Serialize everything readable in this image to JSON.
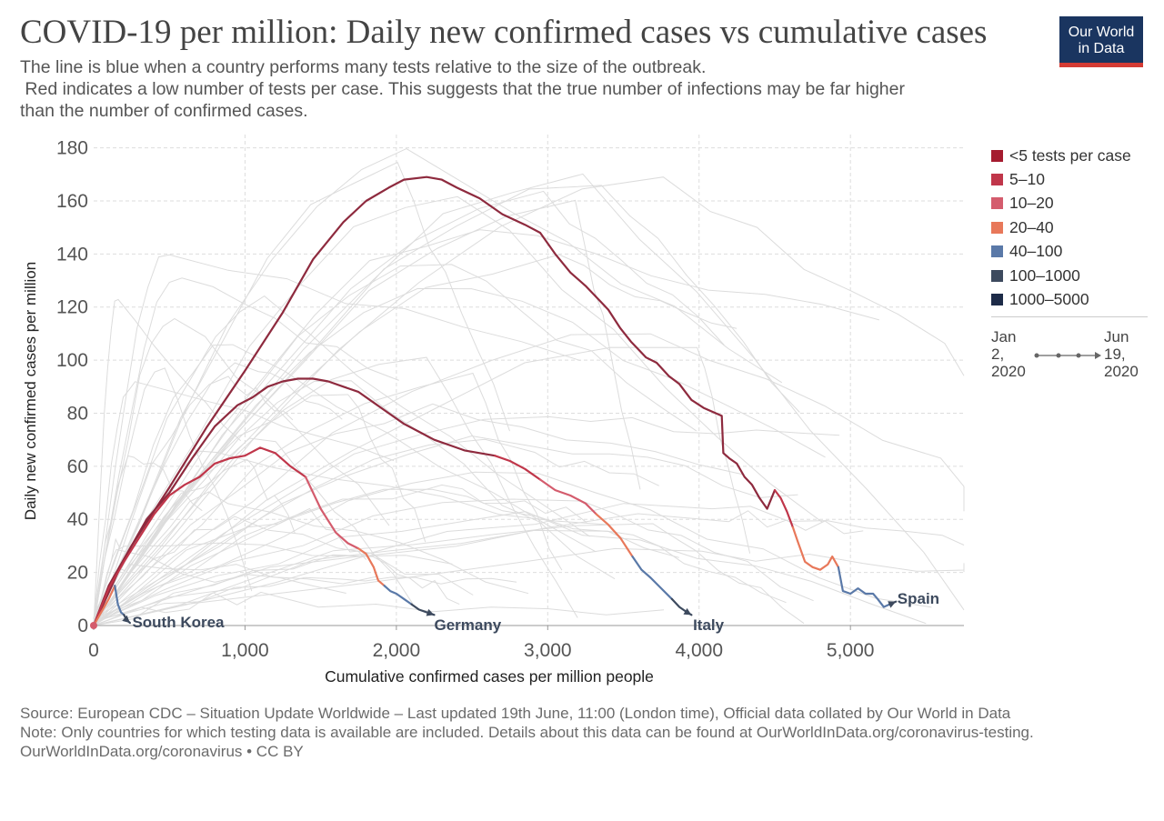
{
  "title": "COVID-19 per million: Daily new confirmed cases vs cumulative cases",
  "subtitle": {
    "line1": "The line is blue when a country performs many tests relative to the size of the outbreak.",
    "line2": " Red indicates a low number of tests per case. This suggests that the true number of infections may be far higher",
    "line3": "than the number of confirmed cases."
  },
  "logo": {
    "line1": "Our World",
    "line2": "in Data",
    "bg_color": "#1a3560",
    "accent_color": "#d43b34"
  },
  "legend": {
    "items": [
      {
        "label": "<5 tests per case",
        "color": "#a51c2f"
      },
      {
        "label": "5–10",
        "color": "#c0364a"
      },
      {
        "label": "10–20",
        "color": "#d45c6d"
      },
      {
        "label": "20–40",
        "color": "#e8785a"
      },
      {
        "label": "40–100",
        "color": "#5a79a8"
      },
      {
        "label": "100–1000",
        "color": "#3d4a5e"
      },
      {
        "label": "1000–5000",
        "color": "#1d2b48"
      }
    ],
    "timeline": {
      "start": {
        "l1": "Jan",
        "l2": "2,",
        "l3": "2020"
      },
      "end": {
        "l1": "Jun",
        "l2": "19,",
        "l3": "2020"
      }
    }
  },
  "footer": {
    "source": "Source: European CDC – Situation Update Worldwide – Last updated 19th June, 11:00 (London time), Official data collated by Our World in Data",
    "note": "Note: Only countries for which testing data is available are included. Details about this data can be found at OurWorldInData.org/coronavirus-testing.",
    "license": "OurWorldInData.org/coronavirus • CC BY"
  },
  "chart_data": {
    "type": "line",
    "title": "COVID-19 per million: Daily new confirmed cases vs cumulative cases",
    "xlabel": "Cumulative confirmed cases per million people",
    "ylabel": "Daily new confirmed cases per million",
    "xlim": [
      0,
      5750
    ],
    "ylim": [
      0,
      185
    ],
    "x_ticks": [
      0,
      1000,
      2000,
      3000,
      4000,
      5000
    ],
    "x_tick_labels": [
      "0",
      "1,000",
      "2,000",
      "3,000",
      "4,000",
      "5,000"
    ],
    "y_ticks": [
      0,
      20,
      40,
      60,
      80,
      100,
      120,
      140,
      160,
      180
    ],
    "y_tick_labels": [
      "0",
      "20",
      "40",
      "60",
      "80",
      "100",
      "120",
      "140",
      "160",
      "180"
    ],
    "grid": true,
    "legend_position": "right",
    "series": [
      {
        "name": "Spain",
        "label_color": "#3d4a5e",
        "segments": [
          {
            "color": "#8e2a3e",
            "points": [
              [
                0,
                0
              ],
              [
                100,
                15
              ],
              [
                250,
                30
              ],
              [
                500,
                52
              ],
              [
                750,
                75
              ],
              [
                1000,
                96
              ],
              [
                1250,
                118
              ],
              [
                1450,
                138
              ],
              [
                1650,
                152
              ],
              [
                1800,
                160
              ],
              [
                1950,
                165
              ],
              [
                2050,
                168
              ],
              [
                2200,
                169
              ],
              [
                2300,
                168
              ],
              [
                2400,
                165
              ],
              [
                2550,
                161
              ],
              [
                2700,
                155
              ],
              [
                2850,
                151
              ],
              [
                2950,
                148
              ],
              [
                3050,
                140
              ],
              [
                3150,
                133
              ],
              [
                3250,
                128
              ],
              [
                3350,
                122
              ],
              [
                3400,
                119
              ],
              [
                3480,
                112
              ],
              [
                3550,
                107
              ],
              [
                3650,
                101
              ],
              [
                3720,
                99
              ],
              [
                3800,
                94
              ],
              [
                3870,
                91
              ],
              [
                3950,
                85
              ],
              [
                4030,
                82
              ],
              [
                4150,
                79
              ],
              [
                4160,
                65
              ],
              [
                4200,
                63
              ],
              [
                4250,
                61
              ],
              [
                4300,
                56
              ],
              [
                4350,
                53
              ],
              [
                4400,
                48
              ],
              [
                4450,
                44
              ],
              [
                4500,
                51
              ]
            ]
          },
          {
            "color": "#c0364a",
            "points": [
              [
                4500,
                51
              ],
              [
                4540,
                48
              ],
              [
                4580,
                43
              ],
              [
                4620,
                37
              ]
            ]
          },
          {
            "color": "#e8785a",
            "points": [
              [
                4620,
                37
              ],
              [
                4650,
                32
              ],
              [
                4700,
                24
              ],
              [
                4750,
                22
              ],
              [
                4800,
                21
              ],
              [
                4850,
                23
              ],
              [
                4880,
                26
              ],
              [
                4920,
                22
              ]
            ]
          },
          {
            "color": "#5a79a8",
            "points": [
              [
                4920,
                22
              ],
              [
                4950,
                13
              ],
              [
                5000,
                12
              ],
              [
                5050,
                14
              ],
              [
                5100,
                12
              ],
              [
                5150,
                12
              ],
              [
                5180,
                10
              ],
              [
                5220,
                7
              ],
              [
                5260,
                8
              ]
            ]
          },
          {
            "color": "#3d4a5e",
            "points": [
              [
                5260,
                8
              ],
              [
                5300,
                9
              ]
            ]
          }
        ],
        "label_at": [
          5310,
          10
        ]
      },
      {
        "name": "Italy",
        "label_color": "#3d4a5e",
        "segments": [
          {
            "color": "#8e2a3e",
            "points": [
              [
                0,
                0
              ],
              [
                80,
                10
              ],
              [
                200,
                25
              ],
              [
                350,
                40
              ],
              [
                500,
                50
              ],
              [
                650,
                63
              ],
              [
                800,
                75
              ],
              [
                950,
                83
              ],
              [
                1050,
                86
              ],
              [
                1150,
                90
              ],
              [
                1250,
                92
              ],
              [
                1350,
                93
              ],
              [
                1450,
                93
              ],
              [
                1550,
                92
              ],
              [
                1650,
                90
              ],
              [
                1750,
                88
              ],
              [
                1850,
                84
              ],
              [
                1950,
                80
              ],
              [
                2050,
                76
              ],
              [
                2150,
                73
              ],
              [
                2250,
                70
              ],
              [
                2350,
                68
              ],
              [
                2450,
                66
              ],
              [
                2550,
                65
              ],
              [
                2650,
                64
              ]
            ]
          },
          {
            "color": "#c0364a",
            "points": [
              [
                2650,
                64
              ],
              [
                2750,
                62
              ],
              [
                2850,
                59
              ],
              [
                2950,
                55
              ]
            ]
          },
          {
            "color": "#d45c6d",
            "points": [
              [
                2950,
                55
              ],
              [
                3050,
                51
              ],
              [
                3150,
                49
              ],
              [
                3250,
                46
              ],
              [
                3320,
                42
              ]
            ]
          },
          {
            "color": "#e8785a",
            "points": [
              [
                3320,
                42
              ],
              [
                3400,
                38
              ],
              [
                3480,
                33
              ],
              [
                3560,
                26
              ]
            ]
          },
          {
            "color": "#5a79a8",
            "points": [
              [
                3560,
                26
              ],
              [
                3620,
                21
              ],
              [
                3680,
                18
              ],
              [
                3750,
                14
              ],
              [
                3820,
                10
              ]
            ]
          },
          {
            "color": "#3d4a5e",
            "points": [
              [
                3820,
                10
              ],
              [
                3870,
                7
              ],
              [
                3920,
                5
              ],
              [
                3950,
                4
              ]
            ]
          }
        ],
        "label_at": [
          3960,
          0
        ]
      },
      {
        "name": "Germany",
        "label_color": "#3d4a5e",
        "segments": [
          {
            "color": "#c0364a",
            "points": [
              [
                0,
                0
              ],
              [
                50,
                7
              ],
              [
                100,
                14
              ],
              [
                200,
                24
              ],
              [
                300,
                33
              ],
              [
                400,
                42
              ],
              [
                500,
                49
              ],
              [
                600,
                53
              ],
              [
                700,
                56
              ],
              [
                800,
                61
              ],
              [
                900,
                63
              ],
              [
                1000,
                64
              ],
              [
                1100,
                67
              ],
              [
                1200,
                65
              ],
              [
                1300,
                60
              ],
              [
                1400,
                56
              ]
            ]
          },
          {
            "color": "#d45c6d",
            "points": [
              [
                1400,
                56
              ],
              [
                1500,
                44
              ],
              [
                1600,
                35
              ],
              [
                1680,
                31
              ],
              [
                1750,
                29
              ]
            ]
          },
          {
            "color": "#e8785a",
            "points": [
              [
                1750,
                29
              ],
              [
                1800,
                27
              ],
              [
                1850,
                22
              ],
              [
                1880,
                17
              ],
              [
                1920,
                15
              ]
            ]
          },
          {
            "color": "#5a79a8",
            "points": [
              [
                1920,
                15
              ],
              [
                1960,
                13
              ],
              [
                2000,
                12
              ],
              [
                2050,
                10
              ],
              [
                2100,
                8
              ]
            ]
          },
          {
            "color": "#3d4a5e",
            "points": [
              [
                2100,
                8
              ],
              [
                2150,
                6
              ],
              [
                2200,
                5
              ],
              [
                2250,
                4
              ]
            ]
          }
        ],
        "label_at": [
          2250,
          0
        ]
      },
      {
        "name": "South Korea",
        "label_color": "#3d4a5e",
        "segments": [
          {
            "color": "#e8785a",
            "points": [
              [
                0,
                0
              ],
              [
                50,
                5
              ],
              [
                100,
                10
              ],
              [
                140,
                15
              ]
            ]
          },
          {
            "color": "#5a79a8",
            "points": [
              [
                140,
                15
              ],
              [
                160,
                8
              ],
              [
                180,
                5
              ],
              [
                200,
                4
              ]
            ]
          },
          {
            "color": "#3d4a5e",
            "points": [
              [
                200,
                4
              ],
              [
                220,
                2
              ],
              [
                240,
                1
              ]
            ]
          }
        ],
        "label_at": [
          255,
          1
        ]
      }
    ]
  }
}
